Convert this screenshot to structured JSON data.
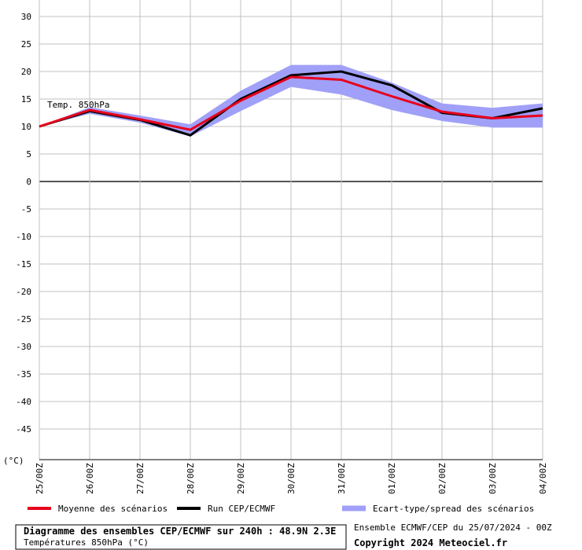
{
  "chart_data": {
    "type": "line",
    "annotation": "Temp. 850hPa",
    "y_unit": "(°C)",
    "categories": [
      "25/00Z",
      "26/00Z",
      "27/00Z",
      "28/00Z",
      "29/00Z",
      "30/00Z",
      "31/00Z",
      "01/00Z",
      "02/00Z",
      "03/00Z",
      "04/00Z"
    ],
    "series": [
      {
        "name": "Moyenne des scénarios",
        "color": "#e8001c",
        "values": [
          10,
          13,
          11.3,
          9.4,
          14.7,
          19,
          18.5,
          15.5,
          12.7,
          11.5,
          12
        ]
      },
      {
        "name": "Run CEP/ECMWF",
        "color": "#000000",
        "values": [
          10,
          12.8,
          11.2,
          8.4,
          15,
          19.3,
          20,
          17.5,
          12.5,
          11.5,
          13.3
        ]
      },
      {
        "name": "Ecart-type/spread des scénarios",
        "color": "#a0a0f8",
        "lower": [
          10,
          12.3,
          10.7,
          8.2,
          12.8,
          17.2,
          15.8,
          13,
          11,
          9.8,
          9.8
        ],
        "upper": [
          10,
          13.5,
          12,
          10.4,
          16.5,
          21.2,
          21.2,
          18,
          14.2,
          13.4,
          14.2
        ]
      }
    ],
    "ylim": [
      -50,
      30
    ],
    "yticks": [
      30,
      25,
      20,
      15,
      10,
      5,
      0,
      -5,
      -10,
      -15,
      -20,
      -25,
      -30,
      -35,
      -40,
      -45
    ],
    "grid": true,
    "footer": {
      "title": "Diagramme des ensembles CEP/ECMWF sur 240h : 48.9N 2.3E",
      "subtitle": "Températures 850hPa (°C)",
      "run": "Ensemble ECMWF/CEP du 25/07/2024 - 00Z",
      "copyright": "Copyright 2024 Meteociel.fr"
    }
  }
}
